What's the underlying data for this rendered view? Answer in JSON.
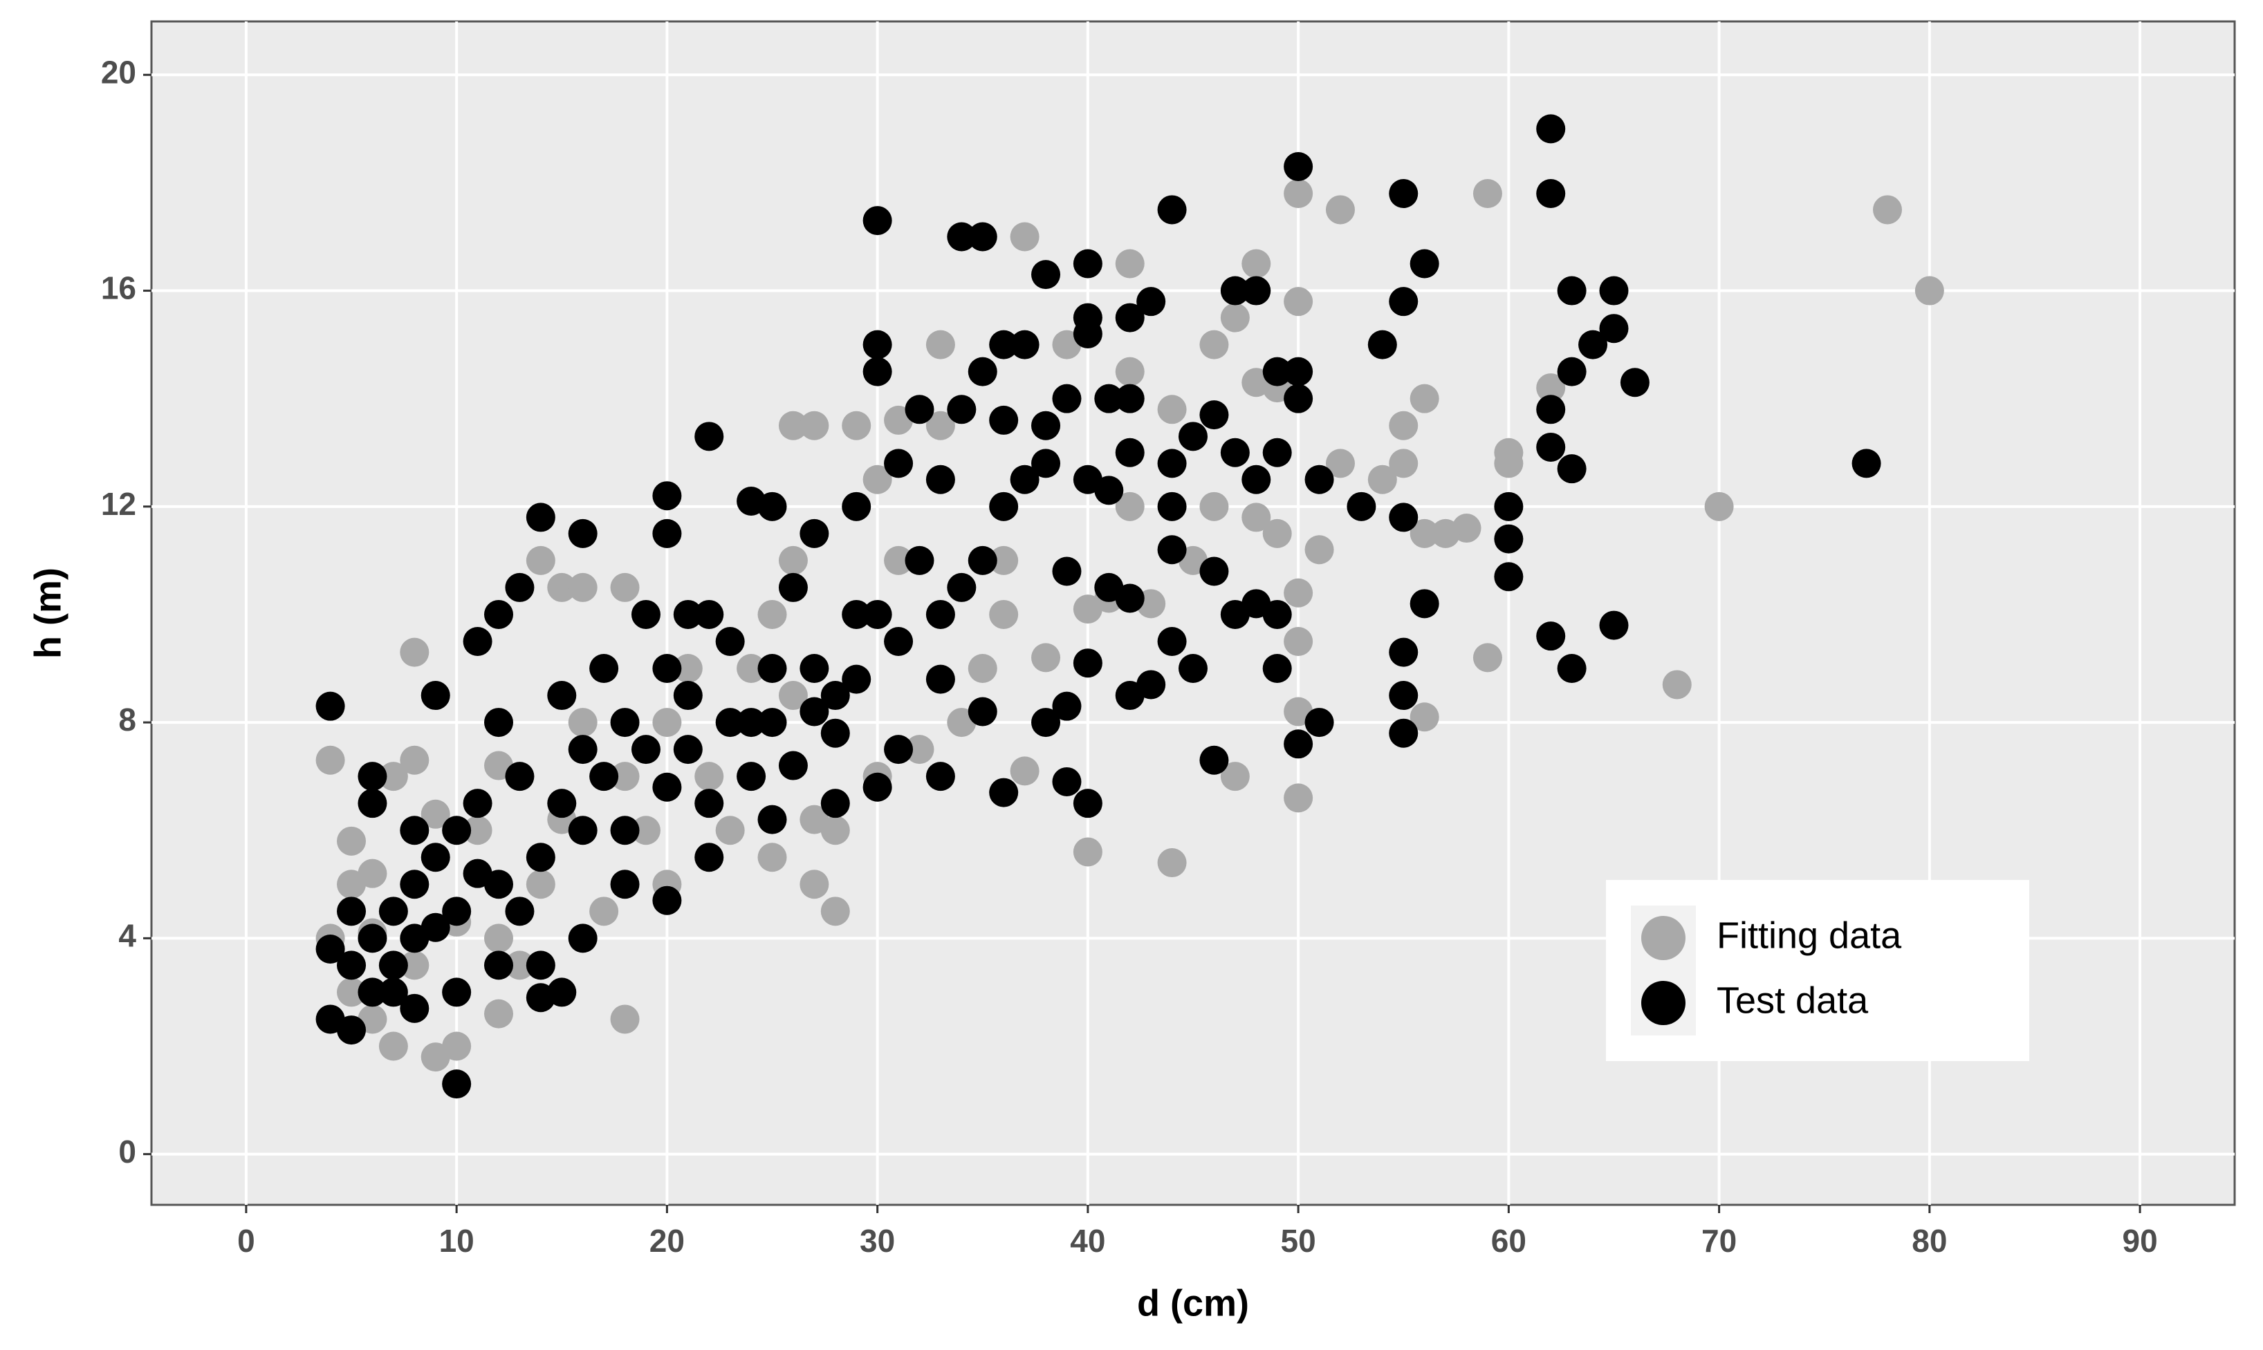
{
  "chart_data": {
    "type": "scatter",
    "x_label": "d (cm)",
    "y_label": "h (m)",
    "xlim": [
      -4.5,
      94.5
    ],
    "ylim": [
      -0.94,
      20.99
    ],
    "xticks": [
      0,
      10,
      20,
      30,
      40,
      50,
      60,
      70,
      80,
      90
    ],
    "yticks": [
      0,
      4,
      8,
      12,
      16,
      20
    ],
    "grid": true,
    "legend": "bottom-right",
    "series": [
      {
        "name": "Fitting data",
        "color": "#a9a9a9",
        "x": [
          4,
          8,
          18,
          10,
          12,
          28,
          27,
          25,
          40,
          44,
          47,
          50,
          50,
          50,
          50,
          51,
          52,
          50,
          50,
          52,
          59,
          62,
          60,
          60,
          58,
          57,
          56,
          56,
          59,
          56,
          55,
          55,
          54,
          68,
          70,
          78,
          80,
          48,
          47,
          46,
          48,
          49,
          46,
          48,
          49,
          42,
          42,
          44,
          37,
          39,
          33,
          33,
          31,
          29,
          26,
          27,
          38,
          30,
          26,
          20,
          14,
          15,
          16,
          18,
          5,
          5,
          6,
          7,
          8,
          7,
          9,
          4,
          5,
          6,
          12,
          13,
          10,
          11,
          14,
          15,
          18,
          20,
          22,
          24,
          25,
          28,
          27,
          30,
          32,
          34,
          35,
          36,
          38,
          37,
          40,
          41,
          43,
          42,
          45,
          36,
          23,
          20,
          17,
          19,
          21,
          26,
          31,
          16,
          9,
          12,
          6,
          8
        ],
        "values": [
          7.3,
          9.3,
          2.5,
          2,
          2.6,
          4.5,
          5,
          5.5,
          5.6,
          5.4,
          7,
          6.6,
          8.2,
          9.5,
          10.4,
          11.2,
          12.8,
          15.8,
          17.8,
          17.5,
          17.8,
          14.2,
          13,
          12.8,
          11.6,
          11.5,
          11.5,
          8.1,
          9.2,
          14,
          13.5,
          12.8,
          12.5,
          8.7,
          12,
          17.5,
          16,
          16.5,
          15.5,
          15,
          14.3,
          14.2,
          12,
          11.8,
          11.5,
          16.5,
          14.5,
          13.8,
          17,
          15,
          15,
          13.5,
          13.6,
          13.5,
          13.5,
          13.5,
          13.5,
          12.5,
          11,
          11.5,
          11,
          10.5,
          10.5,
          10.5,
          5.8,
          5,
          5.2,
          7,
          7.3,
          2,
          1.8,
          4,
          3,
          2.5,
          4,
          3.5,
          4.3,
          6,
          5,
          6.2,
          7,
          8,
          7,
          9,
          10,
          6,
          6.2,
          7,
          7.5,
          8,
          9,
          10,
          9.2,
          7.1,
          10.1,
          10.3,
          10.2,
          12,
          11,
          11,
          6,
          5,
          4.5,
          6,
          9,
          8.5,
          11,
          8,
          6.3,
          7.2,
          4.1,
          3.5
        ]
      },
      {
        "name": "Test data",
        "color": "#000000",
        "x": [
          4,
          4,
          4,
          5,
          6,
          6,
          5,
          7,
          8,
          8,
          9,
          10,
          10,
          11,
          12,
          13,
          14,
          16,
          15,
          14,
          20,
          20,
          22,
          21,
          24,
          25,
          27,
          29,
          30,
          30,
          30,
          32,
          31,
          33,
          34,
          35,
          34,
          35,
          36,
          37,
          36,
          38,
          38,
          39,
          40,
          40,
          40,
          42,
          43,
          41,
          42,
          40,
          41,
          42,
          44,
          44,
          44,
          44,
          45,
          46,
          47,
          48,
          47,
          48,
          49,
          49,
          50,
          50,
          50,
          51,
          53,
          55,
          56,
          55,
          54,
          55,
          56,
          55,
          55,
          55,
          60,
          60,
          60,
          62,
          62,
          62,
          62,
          63,
          63,
          64,
          65,
          65,
          63,
          66,
          62,
          63,
          65,
          77,
          50,
          51,
          46,
          49,
          49,
          48,
          47,
          46,
          45,
          44,
          42,
          43,
          40,
          40,
          39,
          39,
          38,
          36,
          33,
          30,
          28,
          25,
          22,
          20,
          18,
          16,
          14,
          12,
          10,
          8,
          7,
          6,
          9,
          11,
          12,
          13,
          15,
          16,
          17,
          18,
          19,
          20,
          21,
          22,
          23,
          24,
          25,
          26,
          27,
          28,
          29,
          30,
          31,
          32,
          33,
          34,
          35,
          36,
          37,
          38,
          39,
          41,
          42,
          35,
          33,
          31,
          28,
          26,
          24,
          22,
          20,
          18,
          16,
          14,
          12,
          10,
          8,
          13,
          15,
          17,
          19,
          21,
          23,
          25,
          27,
          29,
          11,
          9,
          7,
          5,
          6
        ],
        "values": [
          8.3,
          3.8,
          2.5,
          2.3,
          7,
          6.5,
          4.5,
          3,
          4,
          5,
          8.5,
          1.3,
          6,
          9.5,
          10,
          10.5,
          11.8,
          11.5,
          3,
          2.9,
          12.2,
          11.5,
          13.3,
          10,
          12.1,
          12,
          11.5,
          12,
          17.3,
          15,
          14.5,
          13.8,
          12.8,
          12.5,
          17,
          17,
          13.8,
          14.5,
          15,
          15,
          13.6,
          16.3,
          13.5,
          14,
          16.5,
          15.5,
          15.2,
          15.5,
          15.8,
          14,
          14,
          12.5,
          12.3,
          13,
          17.5,
          12.8,
          12,
          11.2,
          13.3,
          13.7,
          16,
          16,
          13,
          12.5,
          13,
          14.5,
          14.5,
          14,
          18.3,
          12.5,
          12,
          17.8,
          16.5,
          15.8,
          15,
          11.8,
          10.2,
          9.3,
          8.5,
          7.8,
          12,
          11.4,
          10.7,
          19,
          17.8,
          13.8,
          13.1,
          12.7,
          14.5,
          15,
          15.3,
          16,
          16,
          14.3,
          9.6,
          9,
          9.8,
          12.8,
          7.6,
          8,
          7.3,
          9,
          10,
          10.2,
          10,
          10.8,
          9,
          9.5,
          8.5,
          8.7,
          9.1,
          6.5,
          6.9,
          8.3,
          8,
          6.7,
          7,
          6.8,
          6.5,
          6.2,
          5.5,
          4.7,
          5,
          4,
          3.5,
          3.5,
          3,
          2.7,
          3.5,
          4,
          5.5,
          6.5,
          8,
          7,
          8.5,
          7.5,
          9,
          8,
          10,
          9,
          8.5,
          10,
          9.5,
          8,
          9,
          10.5,
          9,
          8.5,
          10,
          10,
          9.5,
          11,
          10,
          10.5,
          11,
          12,
          12.5,
          12.8,
          10.8,
          10.5,
          10.3,
          8.2,
          8.8,
          7.5,
          7.8,
          7.2,
          7,
          6.5,
          6.8,
          6,
          6,
          5.5,
          5,
          4.5,
          6,
          4.5,
          6.5,
          7,
          7.5,
          7.5,
          8,
          8,
          8.2,
          8.8,
          5.2,
          4.2,
          4.5,
          3.5,
          3
        ]
      }
    ]
  }
}
